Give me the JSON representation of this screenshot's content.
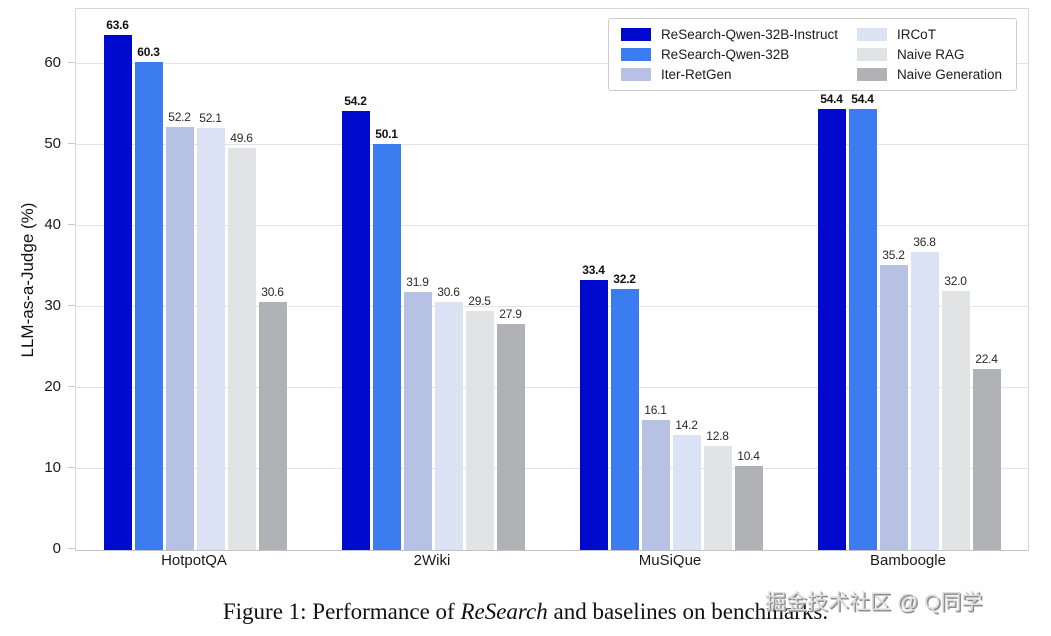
{
  "chart_data": {
    "type": "bar",
    "title": "",
    "xlabel": "",
    "ylabel": "LLM-as-a-Judge (%)",
    "ylim": [
      0,
      66.8
    ],
    "yticks": [
      0,
      10,
      20,
      30,
      40,
      50,
      60
    ],
    "grid": true,
    "legend_position": "upper right",
    "categories": [
      "HotpotQA",
      "2Wiki",
      "MuSiQue",
      "Bamboogle"
    ],
    "series": [
      {
        "name": "ReSearch-Qwen-32B-Instruct",
        "color": "#0009CE",
        "bold_labels": true,
        "values": [
          63.6,
          54.2,
          33.4,
          54.4
        ]
      },
      {
        "name": "ReSearch-Qwen-32B",
        "color": "#3B7DF0",
        "bold_labels": true,
        "values": [
          60.3,
          50.1,
          32.2,
          54.4
        ]
      },
      {
        "name": "Iter-RetGen",
        "color": "#B6C1E4",
        "bold_labels": false,
        "values": [
          52.2,
          31.9,
          16.1,
          35.2
        ]
      },
      {
        "name": "IRCoT",
        "color": "#DBE2F3",
        "bold_labels": false,
        "values": [
          52.1,
          30.6,
          14.2,
          36.8
        ]
      },
      {
        "name": "Naive RAG",
        "color": "#E2E3E5",
        "bold_labels": false,
        "values": [
          49.6,
          29.5,
          12.8,
          32.0
        ]
      },
      {
        "name": "Naive Generation",
        "color": "#B1B2B5",
        "bold_labels": false,
        "values": [
          30.6,
          27.9,
          10.4,
          22.4
        ]
      }
    ]
  },
  "caption": {
    "prefix": "Figure 1: Performance of ",
    "italic": "ReSearch",
    "suffix": " and baselines on benchmarks."
  },
  "watermark": "掘金技术社区 @ Q同学"
}
